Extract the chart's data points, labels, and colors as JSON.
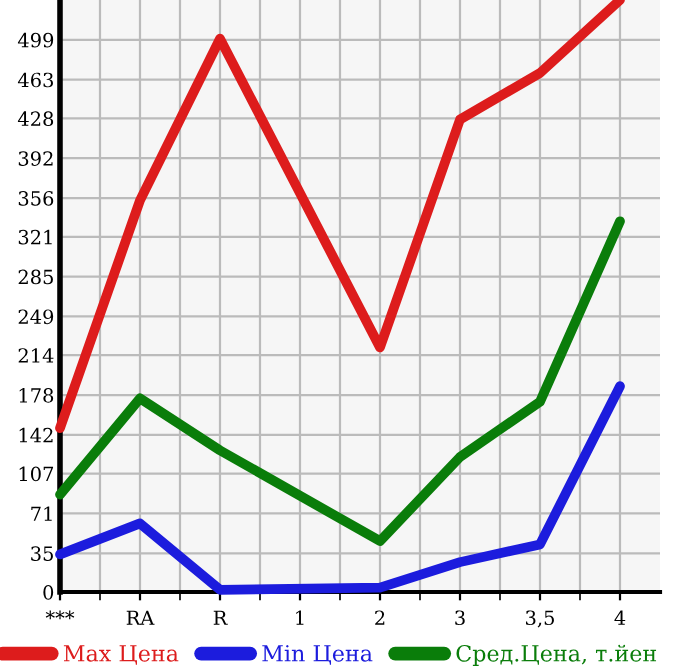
{
  "chart_data": {
    "type": "line",
    "categories": [
      "***",
      "RA",
      "R",
      "1",
      "2",
      "3",
      "3,5",
      "4"
    ],
    "series": [
      {
        "name": "Max Цена",
        "color": "#dd1c1c",
        "values": [
          148,
          354,
          500,
          null,
          221,
          427,
          469,
          535
        ]
      },
      {
        "name": "Min Цена",
        "color": "#1c1cdd",
        "values": [
          34,
          62,
          2,
          null,
          4,
          27,
          43,
          186
        ]
      },
      {
        "name": "Сред.Цена, т.йен",
        "color": "#0a7d0a",
        "values": [
          88,
          175,
          128,
          null,
          46,
          122,
          172,
          335
        ]
      }
    ],
    "ylim": [
      0,
      535
    ],
    "yticks": [
      0,
      35,
      71,
      107,
      142,
      178,
      214,
      249,
      285,
      321,
      356,
      392,
      428,
      463,
      499
    ],
    "grid": true,
    "legend": "bottom",
    "marker": "none",
    "line_style": "solid"
  }
}
